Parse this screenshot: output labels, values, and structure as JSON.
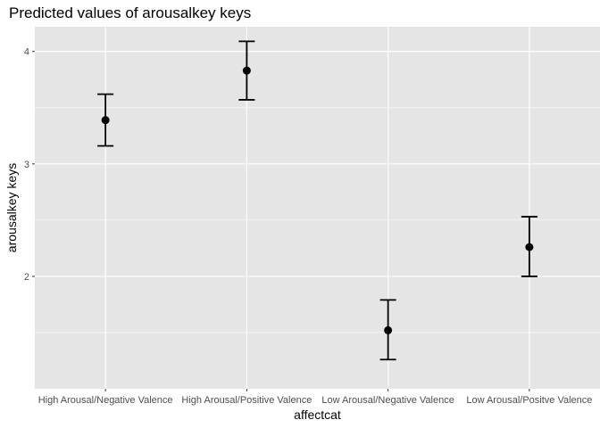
{
  "chart_data": {
    "type": "scatter",
    "title": "Predicted values of arousalkey keys",
    "xlabel": "affectcat",
    "ylabel": "arousalkey keys",
    "categories": [
      "High Arousal/Negative Valence",
      "High Arousal/Positive Valence",
      "Low Arousal/Negative Valence",
      "Low Arousal/Positve Valence"
    ],
    "values": [
      3.39,
      3.83,
      1.52,
      2.26
    ],
    "error_low": [
      3.16,
      3.57,
      1.26,
      2.0
    ],
    "error_high": [
      3.62,
      4.09,
      1.79,
      2.53
    ],
    "y_ticks": [
      2,
      3,
      4
    ],
    "ylim": [
      1.0,
      4.22
    ],
    "grid": true,
    "colors": {
      "panel_background": "#e5e5e5",
      "grid": "#ffffff",
      "marker": "#000000"
    }
  }
}
